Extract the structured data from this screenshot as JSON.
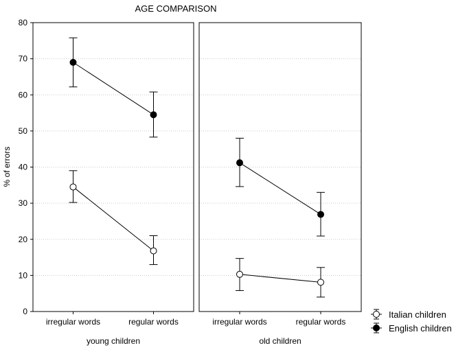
{
  "chart_data": {
    "type": "line",
    "title": "AGE COMPARISON",
    "ylabel": "% of errors",
    "ylim": [
      0,
      80
    ],
    "yticks": [
      0,
      10,
      20,
      30,
      40,
      50,
      60,
      70,
      80
    ],
    "grid": true,
    "legend_position": "bottom-right",
    "colors": {
      "axis": "#000000",
      "grid": "#c8c8c8",
      "line": "#000000"
    },
    "categories": [
      "irregular words",
      "regular words"
    ],
    "panels": [
      {
        "name": "young children",
        "series": [
          {
            "name": "Italian children",
            "marker": "open-circle",
            "values": [
              34.5,
              16.8
            ],
            "ci_low": [
              30.2,
              13.0
            ],
            "ci_high": [
              39.0,
              21.0
            ]
          },
          {
            "name": "English children",
            "marker": "filled-circle",
            "values": [
              69.0,
              54.5
            ],
            "ci_low": [
              62.2,
              48.3
            ],
            "ci_high": [
              75.8,
              60.8
            ]
          }
        ]
      },
      {
        "name": "old children",
        "series": [
          {
            "name": "Italian children",
            "marker": "open-circle",
            "values": [
              10.3,
              8.1
            ],
            "ci_low": [
              5.8,
              4.0
            ],
            "ci_high": [
              14.7,
              12.2
            ]
          },
          {
            "name": "English children",
            "marker": "filled-circle",
            "values": [
              41.2,
              26.9
            ],
            "ci_low": [
              34.6,
              20.9
            ],
            "ci_high": [
              48.0,
              33.0
            ]
          }
        ]
      }
    ],
    "legend": [
      {
        "label": "Italian children",
        "marker": "open-circle"
      },
      {
        "label": "English children",
        "marker": "filled-circle"
      }
    ]
  }
}
